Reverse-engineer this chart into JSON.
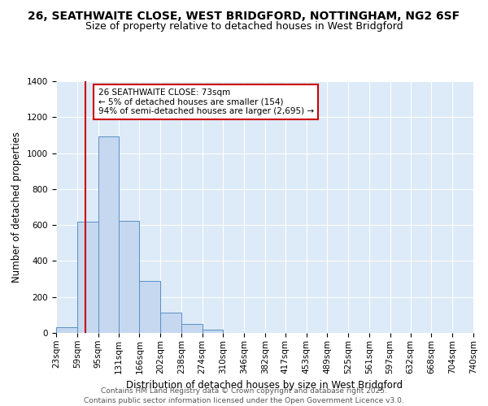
{
  "title1": "26, SEATHWAITE CLOSE, WEST BRIDGFORD, NOTTINGHAM, NG2 6SF",
  "title2": "Size of property relative to detached houses in West Bridgford",
  "xlabel": "Distribution of detached houses by size in West Bridgford",
  "ylabel": "Number of detached properties",
  "bin_labels": [
    "23sqm",
    "59sqm",
    "95sqm",
    "131sqm",
    "166sqm",
    "202sqm",
    "238sqm",
    "274sqm",
    "310sqm",
    "346sqm",
    "382sqm",
    "417sqm",
    "453sqm",
    "489sqm",
    "525sqm",
    "561sqm",
    "597sqm",
    "632sqm",
    "668sqm",
    "704sqm",
    "740sqm"
  ],
  "bin_edges": [
    23,
    59,
    95,
    131,
    166,
    202,
    238,
    274,
    310,
    346,
    382,
    417,
    453,
    489,
    525,
    561,
    597,
    632,
    668,
    704,
    740
  ],
  "bar_heights": [
    30,
    620,
    1095,
    625,
    290,
    115,
    50,
    20,
    0,
    0,
    0,
    0,
    0,
    0,
    0,
    0,
    0,
    0,
    0,
    0
  ],
  "bar_color": "#c5d8f0",
  "bar_edge_color": "#5a8fc4",
  "property_line_x": 73,
  "property_line_color": "#cc0000",
  "annotation_title": "26 SEATHWAITE CLOSE: 73sqm",
  "annotation_line1": "← 5% of detached houses are smaller (154)",
  "annotation_line2": "94% of semi-detached houses are larger (2,695) →",
  "annotation_box_color": "#cc0000",
  "ylim": [
    0,
    1400
  ],
  "yticks": [
    0,
    200,
    400,
    600,
    800,
    1000,
    1200,
    1400
  ],
  "bg_color": "#ddeaf7",
  "footer1": "Contains HM Land Registry data © Crown copyright and database right 2025.",
  "footer2": "Contains public sector information licensed under the Open Government Licence v3.0.",
  "title1_fontsize": 10,
  "title2_fontsize": 9,
  "axis_label_fontsize": 8.5,
  "tick_fontsize": 7.5,
  "footer_fontsize": 6.5
}
